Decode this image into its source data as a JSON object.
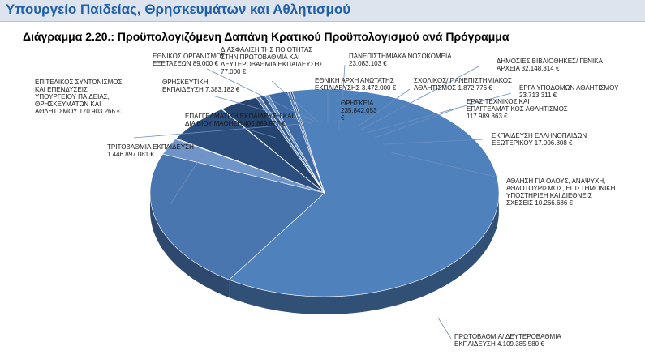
{
  "header": {
    "ministry": "Υπουργείο Παιδείας, Θρησκευμάτων και Αθλητισμού"
  },
  "chart_data": {
    "type": "pie",
    "title": "Διάγραμμα 2.20.: Προϋπολογιζόμενη Δαπάνη Κρατικού Προϋπολογισμού ανά Πρόγραμμα",
    "slices": [
      {
        "key": "primary",
        "name": "ΠΡΩΤΟΒΑΘΜΙΑ/ ΔΕΥΤΕΡΟΒΑΘΜΙΑ ΕΚΠΑΙΔΕΥΣΗ",
        "value": 4109385580,
        "label_lines": [
          "ΠΡΩΤΟΒΑΘΜΙΑ/ ΔΕΥΤΕΡΟΒΑΘΜΙΑ",
          "ΕΚΠΑΙΔΕΥΣΗ 4.109.385.580 €"
        ],
        "color": "#4f81bd"
      },
      {
        "key": "tertiary",
        "name": "ΤΡΙΤΟΒΑΘΜΙΑ ΕΚΠΑΙΔΕΥΣΗ",
        "value": 1446897081,
        "label_lines": [
          "ΤΡΙΤΟΒΑΘΜΙΑ ΕΚΠΑΙΔΕΥΣΗ",
          "1.446.897.081 €"
        ],
        "color": "#4a76b0"
      },
      {
        "key": "coordination",
        "name": "ΕΠΙΤΕΛΙΚΟΣ ΣΥΝΤΟΝΙΣΜΟΣ ΚΑΙ ΕΠΕΝΔΥΣΕΙΣ ΥΠΟΥΡΓΕΙΟΥ ΠΑΙΔΕΙΑΣ, ΘΡΗΣΚΕΥΜΑΤΩΝ ΚΑΙ ΑΘΛΗΤΙΣΜΟΥ",
        "value": 170903266,
        "label_lines": [
          "ΕΠΙΤΕΛΙΚΟΣ ΣΥΝΤΟΝΙΣΜΟΣ",
          "ΚΑΙ ΕΠΕΝΔΥΣΕΙΣ",
          "ΥΠΟΥΡΓΕΙΟΥ ΠΑΙΔΕΙΑΣ,",
          "ΘΡΗΣΚΕΥΜΑΤΩΝ ΚΑΙ",
          "ΑΘΛΗΤΙΣΜΟΥ 170.903.266 €"
        ],
        "color": "#6e94c8"
      },
      {
        "key": "religious_ed",
        "name": "ΘΡΗΣΚΕΥΤΙΚΗ ΕΚΠΑΙΔΕΥΣΗ",
        "value": 7383182,
        "label_lines": [
          "ΘΡΗΣΚΕΥΤΙΚΗ",
          "ΕΚΠΑΙΔΕΥΣΗ 7.383.182 €"
        ],
        "color": "#3b6396"
      },
      {
        "key": "exams",
        "name": "ΕΘΝΙΚΟΣ ΟΡΓΑΝΙΣΜΟΣ ΕΞΕΤΑΣΕΩΝ",
        "value": 89000,
        "label_lines": [
          "ΕΘΝΙΚΟΣ ΟΡΓΑΝΙΣΜΟΣ",
          "ΕΞΕΤΑΣΕΩΝ 89.000 €"
        ],
        "color": "#8eaad6"
      },
      {
        "key": "vocational",
        "name": "ΕΠΑΓΓΕΛΜΑΤΙΚΗ ΕΚΠΑΙΔΕΥΣΗ ΚΑΙ ΔΙΑ ΒΙΟΥ ΜΑΘΗΣΗ",
        "value": 405869977,
        "label_lines": [
          "ΕΠΑΓΓΕΛΜΑΤΙΚΗ ΕΚΠΑΙΔΕΥΣΗ ΚΑΙ",
          "ΔΙΑ ΒΙΟΥ ΜΑΘΗΣΗ 405.869.977 €"
        ],
        "color": "#2c4f80"
      },
      {
        "key": "quality",
        "name": "ΔΙΑΣΦΑΛΙΣΗ ΤΗΣ ΠΟΙΟΤΗΤΑΣ ΣΤΗΝ ΠΡΩΤΟΒΑΘΜΙΑ ΚΑΙ ΔΕΥΤΕΡΟΒΑΘΜΙΑ ΕΚΠΑΙΔΕΥΣΗ",
        "value": 77000,
        "label_lines": [
          "ΔΙΑΣΦΑΛΙΣΗ ΤΗΣ ΠΟΙΟΤΗΤΑΣ",
          "ΣΤΗΝ ΠΡΩΤΟΒΑΘΜΙΑ ΚΑΙ",
          "ΔΕΥΤΕΡΟΒΑΘΜΙΑ ΕΚΠΑΙΔΕΥΣΗΣ",
          "77.000 €"
        ],
        "color": "#7b9ccd"
      },
      {
        "key": "higher_ed_auth",
        "name": "ΕΘΝΙΚΗ ΑΡΧΗ ΑΝΩΤΑΤΗΣ ΕΚΠΑΙΔΕΥΣΗΣ",
        "value": 3472000,
        "label_lines": [
          "ΕΘΝΙΚΗ ΑΡΧΗ ΑΝΩΤΑΤΗΣ",
          "ΕΚΠΑΙΔΕΥΣΗΣ 3.472.000 €"
        ],
        "color": "#a3bbe0"
      },
      {
        "key": "religions",
        "name": "ΘΡΗΣΚΕΙΑ",
        "value": 235842053,
        "label_lines": [
          "ΘΡΗΣΚΕΙΑ",
          "235.842.053",
          "€"
        ],
        "color": "#24446f"
      },
      {
        "key": "hospitals",
        "name": "ΠΑΝΕΠΙΣΤΗΜΙΑΚΑ ΝΟΣΟΚΟΜΕΙΑ",
        "value": 23083103,
        "label_lines": [
          "ΠΑΝΕΠΙΣΤΗΜΙΑΚΑ ΝΟΣΟΚΟΜΕΙΑ",
          "23.083.103 €"
        ],
        "color": "#5b82b9"
      },
      {
        "key": "school_athletics",
        "name": "ΣΧΟΛΙΚΟΣ/ ΠΑΝΕΠΙΣΤΗΜΙΑΚΟΣ ΑΘΛΗΤΙΣΜΟΣ",
        "value": 1872776,
        "label_lines": [
          "ΣΧΟΛΙΚΟΣ/ ΠΑΝΕΠΙΣΤΗΜΙΑΚΟΣ",
          "ΑΘΛΗΤΙΣΜΟΣ 1.872.776 €"
        ],
        "color": "#9fb6dc"
      },
      {
        "key": "libraries",
        "name": "ΔΗΜΟΣΙΕΣ ΒΙΒΛΙΟΘΗΚΕΣ/ ΓΕΝΙΚΑ ΑΡΧΕΙΑ",
        "value": 32148314,
        "label_lines": [
          "ΔΗΜΟΣΙΕΣ ΒΙΒΛΙΟΘΗΚΕΣ/ ΓΕΝΙΚΑ",
          "ΑΡΧΕΙΑ 32.148.314 €"
        ],
        "color": "#33598d"
      },
      {
        "key": "infrastructure",
        "name": "ΕΡΓΑ ΥΠΟΔΟΜΩΝ ΑΘΛΗΤΙΣΜΟΥ",
        "value": 23713311,
        "label_lines": [
          "ΕΡΓΑ ΥΠΟΔΟΜΩΝ ΑΘΛΗΤΙΣΜΟΥ",
          "23.713.311 €"
        ],
        "color": "#6a8fc4"
      },
      {
        "key": "amateur_pro",
        "name": "ΕΡΑΣΙΤΕΧΝΙΚΟΣ ΚΑΙ ΕΠΑΓΓΕΛΜΑΤΙΚΟΣ ΑΘΛΗΤΙΣΜΟΣ",
        "value": 117989863,
        "label_lines": [
          "ΕΡΑΣΙΤΕΧΝΙΚΟΣ ΚΑΙ",
          "ΕΠΑΓΓΕΛΜΑΤΙΚΟΣ ΑΘΛΗΤΙΣΜΟΣ",
          "117.989.863 €"
        ],
        "color": "#3e6aa6"
      },
      {
        "key": "abroad",
        "name": "ΕΚΠΑΙΔΕΥΣΗ ΕΛΛΗΝΟΠΑΙΔΩΝ ΕΞΩΤΕΡΙΚΟΥ",
        "value": 17006808,
        "label_lines": [
          "ΕΚΠΑΙΔΕΥΣΗ ΕΛΛΗΝΟΠΑΙΔΩΝ",
          "ΕΞΩΤΕΡΙΚΟΥ 17.006.808 €"
        ],
        "color": "#4d79b5"
      },
      {
        "key": "sport_all",
        "name": "ΑΘΛΗΣΗ ΓΙΑ ΟΛΟΥΣ, ΑΝΑΨΥΧΗ, ΑΘΛΟΤΟΥΡΙΣΜΟΣ, ΕΠΙΣΤΗΜΟΝΙΚΗ ΥΠΟΣΤΗΡΙΞΗ ΚΑΙ ΔΙΕΘΝΕΙΣ ΣΧΕΣΕΙΣ",
        "value": 10266686,
        "label_lines": [
          "ΑΘΛΗΣΗ ΓΙΑ ΟΛΟΥΣ, ΑΝΑΨΥΧΗ,",
          "ΑΘΛΟΤΟΥΡΙΣΜΟΣ, ΕΠΙΣΤΗΜΟΝΙΚΗ",
          "ΥΠΟΣΤΗΡΙΞΗ ΚΑΙ ΔΙΕΘΝΕΙΣ",
          "ΣΧΕΣΕΙΣ 10.266.686 €"
        ],
        "color": "#2a4a79"
      }
    ]
  }
}
